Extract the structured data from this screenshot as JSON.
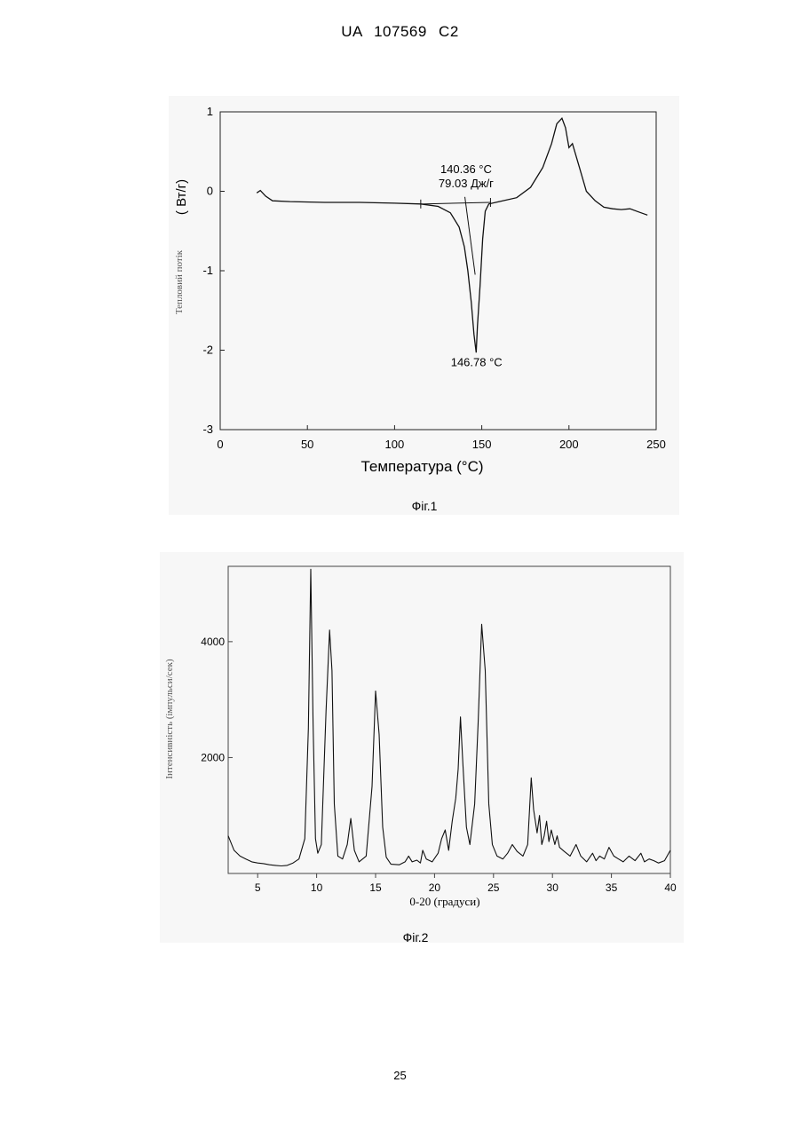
{
  "header": {
    "text": "UA   107569   C2"
  },
  "page_number": "25",
  "figures": {
    "fig1": {
      "caption": "Фіг.1"
    },
    "fig2": {
      "caption": "Фіг.2"
    }
  },
  "chart_data": [
    {
      "type": "line",
      "xlabel": "Температура (°C)",
      "ylabel_unit": "( Вт/г)",
      "ylabel": "Тепловий потік",
      "xlim": [
        0,
        250
      ],
      "ylim": [
        -3,
        1
      ],
      "x_ticks": [
        0,
        50,
        100,
        150,
        200,
        250
      ],
      "y_ticks": [
        1,
        0,
        -1,
        -2,
        -3
      ],
      "series": [
        {
          "x": [
            21,
            23,
            26,
            30,
            40,
            60,
            80,
            100,
            115,
            125,
            132,
            137,
            140,
            142,
            144,
            145.5,
            146.78,
            147.5,
            149,
            150.5,
            152,
            154,
            160,
            170,
            178,
            185,
            190,
            193,
            196,
            198,
            200,
            202,
            206,
            210,
            215,
            220,
            225,
            230,
            235,
            240,
            245
          ],
          "y": [
            -0.02,
            0.01,
            -0.06,
            -0.12,
            -0.13,
            -0.14,
            -0.14,
            -0.15,
            -0.16,
            -0.19,
            -0.27,
            -0.45,
            -0.7,
            -1.0,
            -1.4,
            -1.8,
            -2.03,
            -1.7,
            -1.2,
            -0.6,
            -0.25,
            -0.16,
            -0.13,
            -0.08,
            0.05,
            0.3,
            0.6,
            0.85,
            0.92,
            0.8,
            0.55,
            0.6,
            0.3,
            0.0,
            -0.12,
            -0.2,
            -0.22,
            -0.23,
            -0.22,
            -0.26,
            -0.3
          ]
        }
      ],
      "baseline": {
        "x": [
          115,
          155
        ],
        "y": [
          -0.16,
          -0.14
        ]
      },
      "annotations": [
        {
          "text": "140.36 °C",
          "x": 141,
          "y": 0.23
        },
        {
          "text": "79.03 Дж/г",
          "x": 141,
          "y": 0.05
        },
        {
          "text": "146.78 °C",
          "x": 147,
          "y": -2.2
        }
      ]
    },
    {
      "type": "line",
      "xlabel": "0-20 (градуси)",
      "ylabel": "Інтенсивність (імпульси/сек)",
      "xlim": [
        2.5,
        40
      ],
      "ylim": [
        0,
        5300
      ],
      "x_ticks": [
        5,
        10,
        15,
        20,
        25,
        30,
        35,
        40
      ],
      "y_ticks": [
        2000,
        4000
      ],
      "series": [
        {
          "x": [
            2.5,
            3,
            3.5,
            4,
            4.5,
            5,
            5.5,
            6,
            6.5,
            7,
            7.5,
            8,
            8.5,
            9,
            9.3,
            9.5,
            9.7,
            9.9,
            10.1,
            10.4,
            10.8,
            11.1,
            11.3,
            11.5,
            11.8,
            12.2,
            12.6,
            12.9,
            13.2,
            13.6,
            14.2,
            14.7,
            15.0,
            15.3,
            15.6,
            15.9,
            16.3,
            17,
            17.5,
            17.8,
            18.1,
            18.5,
            18.8,
            19.0,
            19.3,
            19.8,
            20.3,
            20.6,
            20.9,
            21.2,
            21.5,
            21.8,
            22.0,
            22.2,
            22.4,
            22.7,
            23.0,
            23.4,
            23.7,
            24.0,
            24.3,
            24.6,
            24.9,
            25.3,
            25.8,
            26.2,
            26.6,
            27.0,
            27.5,
            27.9,
            28.2,
            28.4,
            28.7,
            28.9,
            29.1,
            29.3,
            29.5,
            29.7,
            29.9,
            30.2,
            30.4,
            30.6,
            31.0,
            31.5,
            32.0,
            32.4,
            32.9,
            33.4,
            33.7,
            34.0,
            34.4,
            34.8,
            35.2,
            35.6,
            36.0,
            36.5,
            37.0,
            37.5,
            37.8,
            38.2,
            38.6,
            39.0,
            39.5,
            40.0
          ],
          "y": [
            650,
            400,
            300,
            250,
            200,
            180,
            170,
            150,
            140,
            130,
            140,
            180,
            250,
            600,
            2500,
            5250,
            2600,
            600,
            350,
            500,
            2800,
            4200,
            3500,
            1200,
            300,
            250,
            500,
            950,
            400,
            200,
            300,
            1500,
            3150,
            2400,
            800,
            280,
            160,
            150,
            200,
            300,
            200,
            230,
            180,
            400,
            250,
            200,
            350,
            600,
            750,
            400,
            900,
            1300,
            1800,
            2700,
            1900,
            800,
            500,
            1200,
            2600,
            4300,
            3500,
            1200,
            500,
            300,
            250,
            350,
            500,
            380,
            300,
            500,
            1650,
            1100,
            700,
            1000,
            500,
            650,
            900,
            550,
            750,
            500,
            650,
            450,
            380,
            300,
            500,
            300,
            200,
            350,
            220,
            300,
            250,
            450,
            300,
            250,
            200,
            300,
            220,
            350,
            200,
            250,
            220,
            180,
            220,
            400
          ]
        }
      ]
    }
  ]
}
